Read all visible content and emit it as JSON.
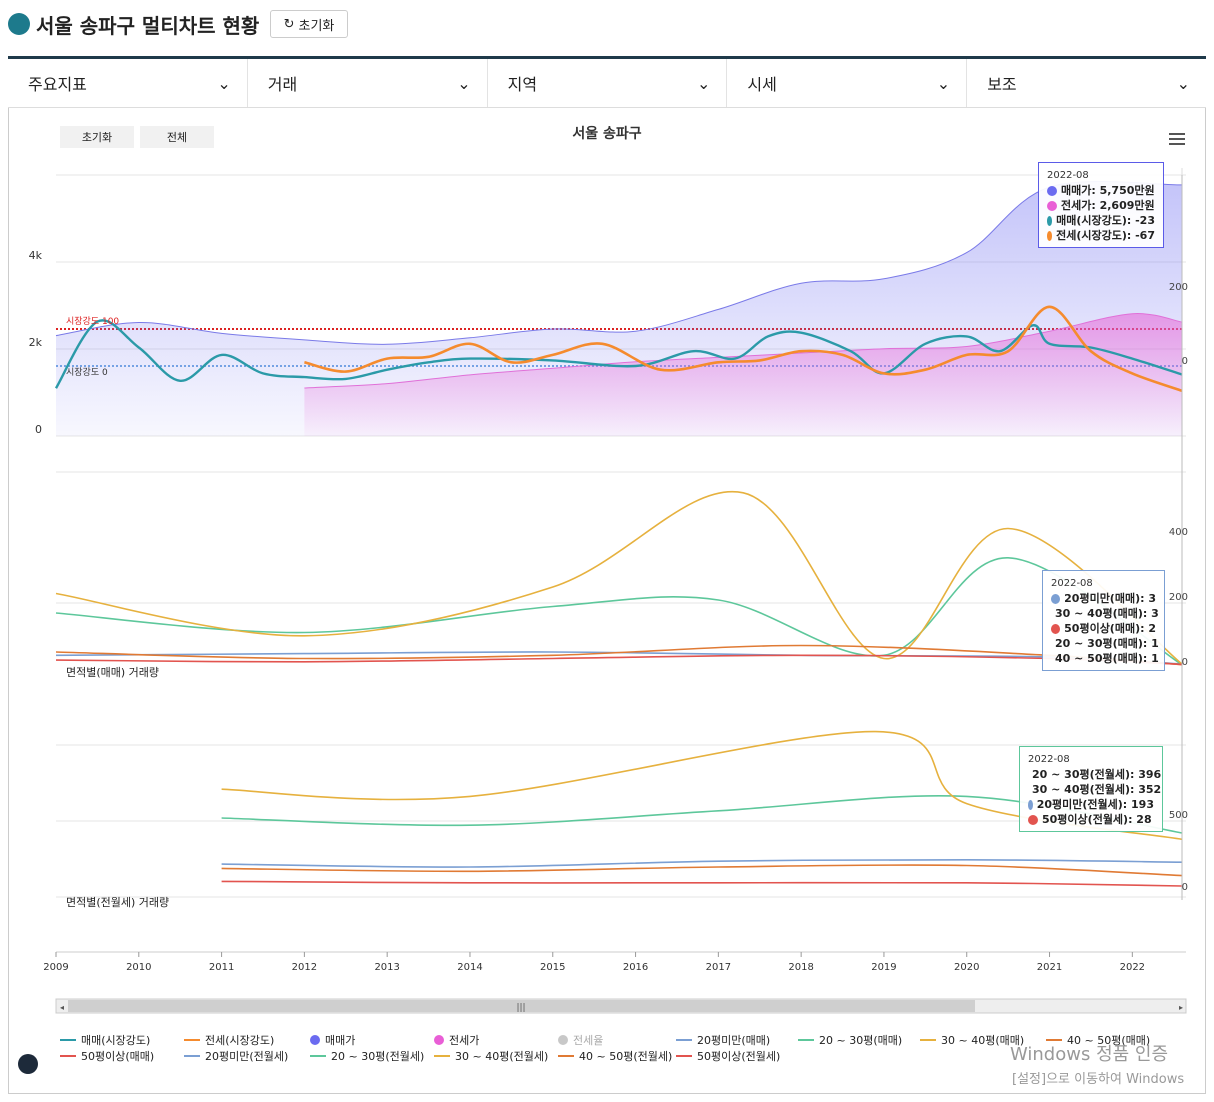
{
  "header": {
    "title": "서울 송파구 멀티차트 현황",
    "reset_label": "초기화"
  },
  "menus": [
    "주요지표",
    "거래",
    "지역",
    "시세",
    "보조"
  ],
  "chart_controls": {
    "reset": "초기화",
    "all": "전체"
  },
  "chart_title": "서울 송파구",
  "colors": {
    "maemae_strength": "#2b9aa8",
    "jeonse_strength": "#f58b2e",
    "maemae_price": "#6b6bf0",
    "jeonse_price": "#e95ed6",
    "jeonse_rate": "#c8c8c8",
    "lt20": "#7b9fd3",
    "p20_30": "#5dc79b",
    "p30_40": "#e6b13e",
    "p40_50": "#e07a34",
    "gt50": "#e2544f"
  },
  "panels": {
    "top": {
      "y_left_ticks": [
        "0",
        "2k",
        "4k"
      ],
      "y_right_ticks": [
        "0",
        "200"
      ],
      "ref_lines": [
        "시장강도 100",
        "시장강도 0"
      ]
    },
    "mid": {
      "label": "면적별(매매) 거래량",
      "y_right_ticks": [
        "0",
        "200",
        "400"
      ]
    },
    "bot": {
      "label": "면적별(전월세) 거래량",
      "y_right_ticks": [
        "0",
        "500"
      ]
    }
  },
  "x_ticks": [
    "2009",
    "2010",
    "2011",
    "2012",
    "2013",
    "2014",
    "2015",
    "2016",
    "2017",
    "2018",
    "2019",
    "2020",
    "2021",
    "2022"
  ],
  "tooltips": {
    "top": {
      "date": "2022-08",
      "rows": [
        {
          "label": "매매가: 5,750만원",
          "color": "#6b6bf0"
        },
        {
          "label": "전세가: 2,609만원",
          "color": "#e95ed6"
        },
        {
          "label": "매매(시장강도): -23",
          "color": "#2b9aa8"
        },
        {
          "label": "전세(시장강도): -67",
          "color": "#f58b2e"
        }
      ]
    },
    "mid": {
      "date": "2022-08",
      "rows": [
        {
          "label": "20평미만(매매): 3",
          "color": "#7b9fd3"
        },
        {
          "label": "30 ~ 40평(매매): 3",
          "color": "#e6b13e"
        },
        {
          "label": "50평이상(매매): 2",
          "color": "#e2544f"
        },
        {
          "label": "20 ~ 30평(매매): 1",
          "color": "#5dc79b"
        },
        {
          "label": "40 ~ 50평(매매): 1",
          "color": "#e07a34"
        }
      ]
    },
    "bot": {
      "date": "2022-08",
      "rows": [
        {
          "label": "20 ~ 30평(전월세): 396",
          "color": "#5dc79b"
        },
        {
          "label": "30 ~ 40평(전월세): 352",
          "color": "#e6b13e"
        },
        {
          "label": "20평미만(전월세): 193",
          "color": "#7b9fd3"
        },
        {
          "label": "50평이상(전월세): 28",
          "color": "#e2544f"
        }
      ]
    }
  },
  "legend": [
    {
      "label": "매매(시장강도)",
      "color": "#2b9aa8",
      "kind": "line"
    },
    {
      "label": "전세(시장강도)",
      "color": "#f58b2e",
      "kind": "line"
    },
    {
      "label": "매매가",
      "color": "#6b6bf0",
      "kind": "dot"
    },
    {
      "label": "전세가",
      "color": "#e95ed6",
      "kind": "dot"
    },
    {
      "label": "전세율",
      "color": "#c8c8c8",
      "kind": "dot"
    },
    {
      "label": "20평미만(매매)",
      "color": "#7b9fd3",
      "kind": "line"
    },
    {
      "label": "20 ~ 30평(매매)",
      "color": "#5dc79b",
      "kind": "line"
    },
    {
      "label": "30 ~ 40평(매매)",
      "color": "#e6b13e",
      "kind": "line"
    },
    {
      "label": "40 ~ 50평(매매)",
      "color": "#e07a34",
      "kind": "line"
    },
    {
      "label": "50평이상(매매)",
      "color": "#e2544f",
      "kind": "line"
    },
    {
      "label": "20평미만(전월세)",
      "color": "#7b9fd3",
      "kind": "line"
    },
    {
      "label": "20 ~ 30평(전월세)",
      "color": "#5dc79b",
      "kind": "line"
    },
    {
      "label": "30 ~ 40평(전월세)",
      "color": "#e6b13e",
      "kind": "line"
    },
    {
      "label": "40 ~ 50평(전월세)",
      "color": "#e07a34",
      "kind": "line"
    },
    {
      "label": "50평이상(전월세)",
      "color": "#e2544f",
      "kind": "line"
    }
  ],
  "os_watermark": {
    "line1": "Windows 정품 인증",
    "line2": "[설정]으로 이동하여 Windows"
  },
  "chart_data": {
    "type": "line",
    "title": "서울 송파구",
    "x_range": [
      "2009-01",
      "2022-08"
    ],
    "panels": [
      {
        "name": "top",
        "series": [
          {
            "name": "매매가",
            "unit": "만원",
            "values": [
              [
                2009,
                2300
              ],
              [
                2010,
                2600
              ],
              [
                2011,
                2350
              ],
              [
                2012,
                2200
              ],
              [
                2013,
                2100
              ],
              [
                2014,
                2250
              ],
              [
                2015,
                2450
              ],
              [
                2016,
                2400
              ],
              [
                2017,
                2900
              ],
              [
                2018,
                3500
              ],
              [
                2019,
                3600
              ],
              [
                2020,
                4200
              ],
              [
                2021,
                5700
              ],
              [
                2022.6,
                5750
              ]
            ]
          },
          {
            "name": "전세가",
            "unit": "만원",
            "values": [
              [
                2012,
                1100
              ],
              [
                2013,
                1200
              ],
              [
                2014,
                1400
              ],
              [
                2015,
                1550
              ],
              [
                2016,
                1700
              ],
              [
                2017,
                1800
              ],
              [
                2018,
                1900
              ],
              [
                2019,
                2000
              ],
              [
                2020,
                2050
              ],
              [
                2021,
                2400
              ],
              [
                2022,
                2800
              ],
              [
                2022.6,
                2609
              ]
            ]
          },
          {
            "name": "매매(시장강도)",
            "values": [
              [
                2009,
                -60
              ],
              [
                2009.5,
                120
              ],
              [
                2010,
                50
              ],
              [
                2010.5,
                -40
              ],
              [
                2011,
                30
              ],
              [
                2011.5,
                -20
              ],
              [
                2012,
                -30
              ],
              [
                2012.5,
                -35
              ],
              [
                2013,
                -10
              ],
              [
                2013.5,
                10
              ],
              [
                2014,
                20
              ],
              [
                2015,
                15
              ],
              [
                2016,
                0
              ],
              [
                2016.7,
                40
              ],
              [
                2017.2,
                20
              ],
              [
                2017.6,
                80
              ],
              [
                2018,
                90
              ],
              [
                2018.6,
                40
              ],
              [
                2019,
                -20
              ],
              [
                2019.5,
                60
              ],
              [
                2020,
                80
              ],
              [
                2020.4,
                40
              ],
              [
                2020.8,
                110
              ],
              [
                2021,
                60
              ],
              [
                2021.5,
                50
              ],
              [
                2022,
                20
              ],
              [
                2022.6,
                -23
              ]
            ]
          },
          {
            "name": "전세(시장강도)",
            "values": [
              [
                2012,
                10
              ],
              [
                2012.5,
                -15
              ],
              [
                2013,
                20
              ],
              [
                2013.5,
                25
              ],
              [
                2014,
                60
              ],
              [
                2014.5,
                10
              ],
              [
                2015,
                30
              ],
              [
                2015.6,
                60
              ],
              [
                2016.3,
                -10
              ],
              [
                2017,
                10
              ],
              [
                2017.5,
                15
              ],
              [
                2018,
                40
              ],
              [
                2018.5,
                30
              ],
              [
                2019,
                -20
              ],
              [
                2019.5,
                -10
              ],
              [
                2020,
                30
              ],
              [
                2020.5,
                40
              ],
              [
                2021,
                160
              ],
              [
                2021.5,
                40
              ],
              [
                2022,
                -20
              ],
              [
                2022.6,
                -67
              ]
            ]
          }
        ]
      },
      {
        "name": "mid",
        "series": [
          {
            "name": "20평미만(매매)",
            "values": [
              [
                2009,
                30
              ],
              [
                2012,
                35
              ],
              [
                2015,
                40
              ],
              [
                2018,
                30
              ],
              [
                2021,
                25
              ],
              [
                2022.6,
                3
              ]
            ]
          },
          {
            "name": "20 ~ 30평(매매)",
            "values": [
              [
                2009,
                160
              ],
              [
                2012,
                100
              ],
              [
                2015,
                180
              ],
              [
                2017,
                200
              ],
              [
                2019,
                30
              ],
              [
                2020.5,
                330
              ],
              [
                2022.6,
                1
              ]
            ]
          },
          {
            "name": "30 ~ 40평(매매)",
            "values": [
              [
                2009,
                220
              ],
              [
                2012,
                90
              ],
              [
                2015,
                240
              ],
              [
                2017.3,
                530
              ],
              [
                2019,
                20
              ],
              [
                2020.5,
                420
              ],
              [
                2022.6,
                3
              ]
            ]
          },
          {
            "name": "40 ~ 50평(매매)",
            "values": [
              [
                2009,
                40
              ],
              [
                2012,
                20
              ],
              [
                2015,
                30
              ],
              [
                2018,
                60
              ],
              [
                2021,
                30
              ],
              [
                2022.6,
                1
              ]
            ]
          },
          {
            "name": "50평이상(매매)",
            "values": [
              [
                2009,
                15
              ],
              [
                2012,
                10
              ],
              [
                2015,
                20
              ],
              [
                2018,
                30
              ],
              [
                2021,
                20
              ],
              [
                2022.6,
                2
              ]
            ]
          }
        ]
      },
      {
        "name": "bot",
        "series": [
          {
            "name": "20평미만(전월세)",
            "values": [
              [
                2011,
                180
              ],
              [
                2014,
                160
              ],
              [
                2017,
                200
              ],
              [
                2020,
                210
              ],
              [
                2022.6,
                193
              ]
            ]
          },
          {
            "name": "20 ~ 30평(전월세)",
            "values": [
              [
                2011,
                500
              ],
              [
                2014,
                450
              ],
              [
                2017,
                550
              ],
              [
                2020,
                650
              ],
              [
                2022.6,
                396
              ]
            ]
          },
          {
            "name": "30 ~ 40평(전월세)",
            "values": [
              [
                2011,
                700
              ],
              [
                2014,
                650
              ],
              [
                2018.9,
                1100
              ],
              [
                2020,
                600
              ],
              [
                2022.6,
                352
              ]
            ]
          },
          {
            "name": "40 ~ 50평(전월세)",
            "values": [
              [
                2011,
                150
              ],
              [
                2014,
                130
              ],
              [
                2017,
                160
              ],
              [
                2020,
                170
              ],
              [
                2022.6,
                100
              ]
            ]
          },
          {
            "name": "50평이상(전월세)",
            "values": [
              [
                2011,
                60
              ],
              [
                2014,
                50
              ],
              [
                2017,
                50
              ],
              [
                2020,
                50
              ],
              [
                2022.6,
                28
              ]
            ]
          }
        ]
      }
    ]
  }
}
